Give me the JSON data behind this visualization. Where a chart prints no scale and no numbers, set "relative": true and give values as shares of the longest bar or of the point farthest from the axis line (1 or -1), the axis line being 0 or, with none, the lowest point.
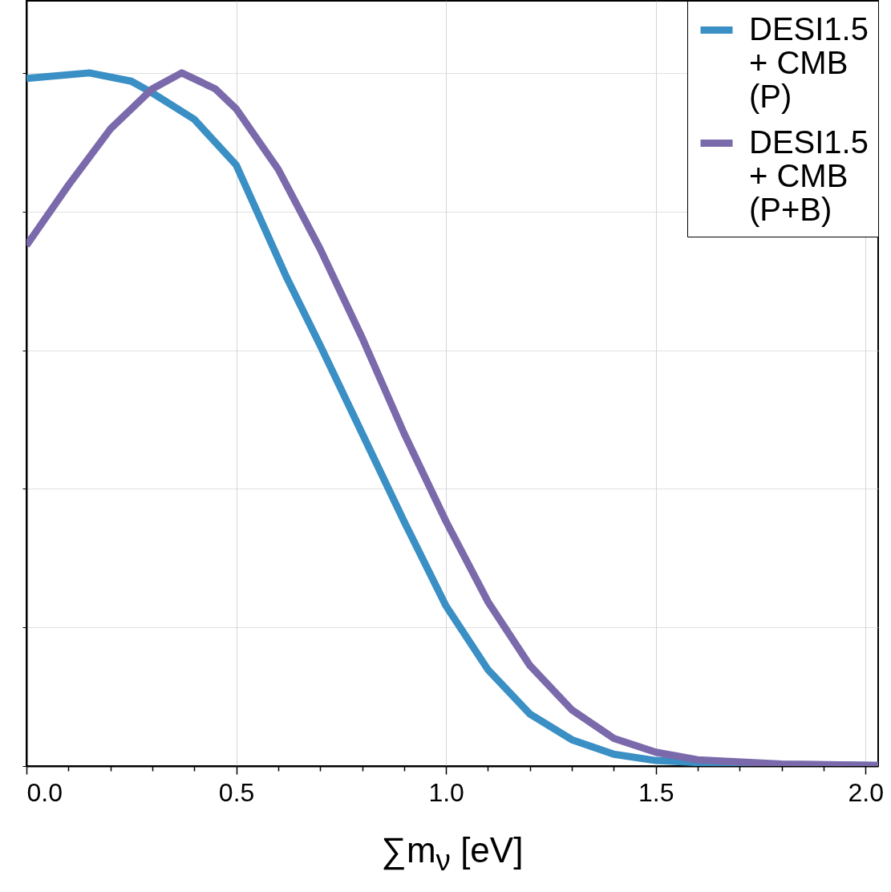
{
  "chart_data": {
    "type": "line",
    "xlabel": "∑m$_{ν}$ [eV]",
    "relative": true,
    "xlim": [
      0,
      2.03
    ],
    "xticks": [
      {
        "value": 0,
        "label": "0.0"
      },
      {
        "value": 0.1,
        "label": null
      },
      {
        "value": 0.2,
        "label": null
      },
      {
        "value": 0.3,
        "label": null
      },
      {
        "value": 0.4,
        "label": null
      },
      {
        "value": 0.5,
        "label": "0.5"
      },
      {
        "value": 0.6,
        "label": null
      },
      {
        "value": 0.7,
        "label": null
      },
      {
        "value": 0.8,
        "label": null
      },
      {
        "value": 0.9,
        "label": null
      },
      {
        "value": 1,
        "label": "1.0"
      },
      {
        "value": 1.1,
        "label": null
      },
      {
        "value": 1.2,
        "label": null
      },
      {
        "value": 1.3,
        "label": null
      },
      {
        "value": 1.4,
        "label": null
      },
      {
        "value": 1.5,
        "label": "1.5"
      },
      {
        "value": 1.6,
        "label": null
      },
      {
        "value": 1.7,
        "label": null
      },
      {
        "value": 1.8,
        "label": null
      },
      {
        "value": 1.9,
        "label": null
      },
      {
        "value": 2,
        "label": "2.0"
      }
    ],
    "grid": true,
    "legend": "top right",
    "tick_labels": "x",
    "line_style": "solid",
    "series": [
      {
        "name": "DESI1.5 + CMB (P)",
        "color": "#3a8fc4",
        "x": [
          0,
          0.15,
          0.25,
          0.3,
          0.4,
          0.5,
          0.62,
          0.7,
          0.8,
          0.9,
          1.0,
          1.1,
          1.2,
          1.3,
          1.4,
          1.5,
          1.6,
          1.8,
          2.03
        ],
        "values": [
          0.992,
          1.0,
          0.988,
          0.971,
          0.933,
          0.867,
          0.705,
          0.607,
          0.48,
          0.353,
          0.231,
          0.139,
          0.075,
          0.038,
          0.017,
          0.008,
          0.005,
          0.002,
          0.001
        ]
      },
      {
        "name": "DESI1.5 + CMB (P+B)",
        "color": "#7b6aab",
        "x": [
          0,
          0.1,
          0.2,
          0.3,
          0.37,
          0.45,
          0.5,
          0.6,
          0.7,
          0.8,
          0.9,
          1.0,
          1.1,
          1.2,
          1.3,
          1.4,
          1.5,
          1.6,
          1.8,
          2.03
        ],
        "values": [
          0.751,
          0.838,
          0.919,
          0.977,
          1.0,
          0.977,
          0.948,
          0.861,
          0.746,
          0.618,
          0.48,
          0.353,
          0.237,
          0.145,
          0.081,
          0.04,
          0.02,
          0.009,
          0.003,
          0.001
        ]
      }
    ]
  }
}
